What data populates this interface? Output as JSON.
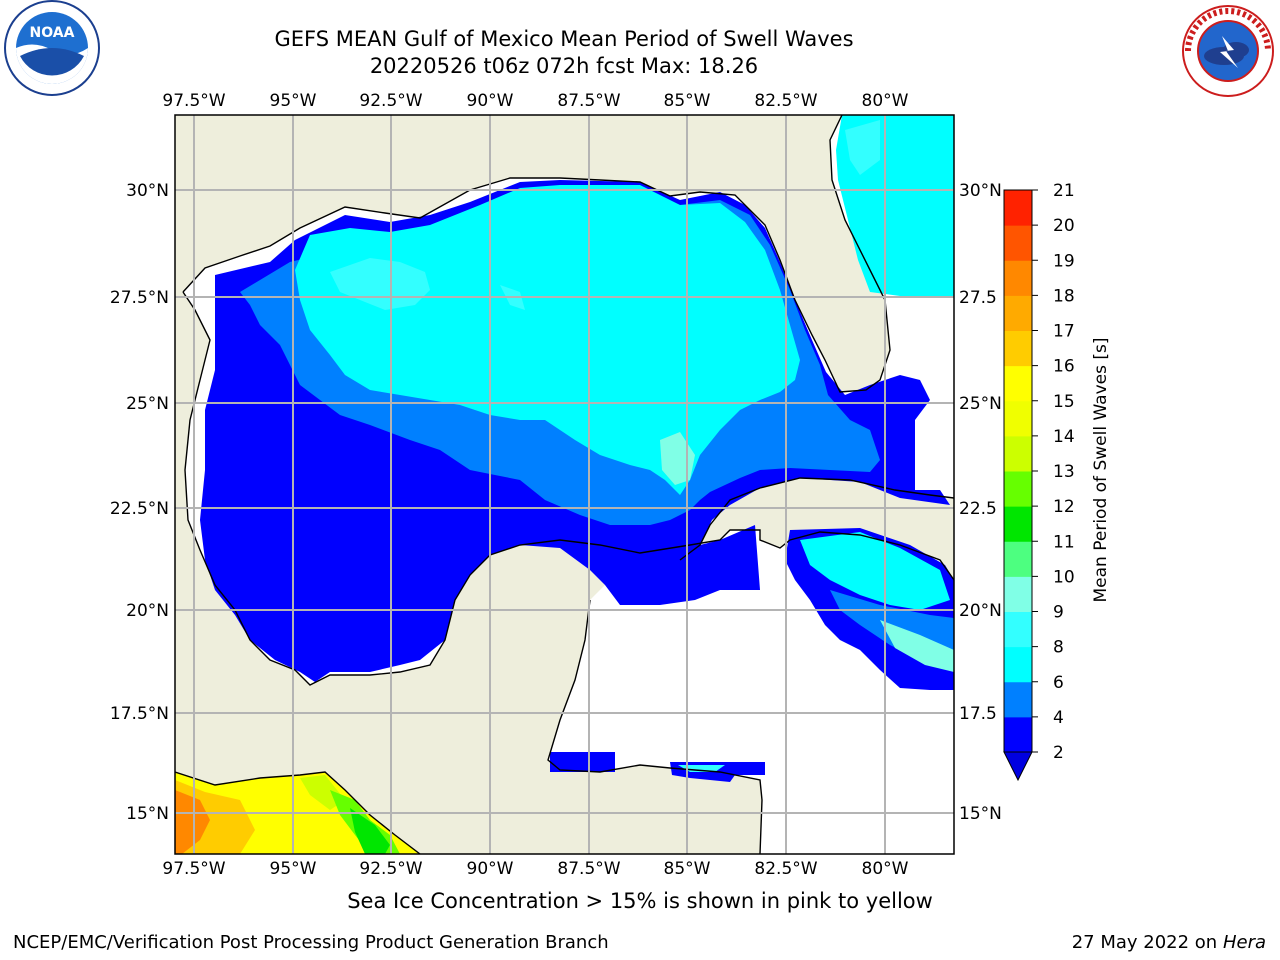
{
  "title_line1": "GEFS MEAN Gulf of Mexico Mean Period of Swell Waves",
  "title_line2": "20220526 t06z 072h fcst   Max: 18.26",
  "lon_ticks": [
    "97.5°W",
    "95°W",
    "92.5°W",
    "90°W",
    "87.5°W",
    "85°W",
    "82.5°W",
    "80°W"
  ],
  "lat_ticks_left": [
    "30°N",
    "27.5°N",
    "25°N",
    "22.5°N",
    "20°N",
    "17.5°N",
    "15°N"
  ],
  "lat_ticks_right": [
    "30°N",
    "27.5",
    "25°N",
    "22.5",
    "20°N",
    "17.5",
    "15°N"
  ],
  "colorbar": {
    "label": "Mean Period of Swell Waves [s]",
    "ticks": [
      "2",
      "4",
      "6",
      "8",
      "9",
      "10",
      "11",
      "12",
      "13",
      "14",
      "15",
      "16",
      "17",
      "18",
      "19",
      "20",
      "21"
    ],
    "colors": [
      "#0000ff",
      "#0080ff",
      "#00ffff",
      "#33ffff",
      "#80ffe6",
      "#4dff80",
      "#00e600",
      "#66ff00",
      "#ccff00",
      "#f0ff00",
      "#ffff00",
      "#ffcc00",
      "#ffaa00",
      "#ff8800",
      "#ff5500",
      "#ff2200",
      "#ff0000"
    ],
    "under_color": "#0000e0"
  },
  "colors": {
    "land": "#eeeedc",
    "grid": "#b4b4b4"
  },
  "footnote": "Sea Ice Concentration > 15% is shown in pink to yellow",
  "credit": "NCEP/EMC/Verification Post Processing Product Generation Branch",
  "run_date": "27 May 2022 on",
  "run_host": "Hera"
}
